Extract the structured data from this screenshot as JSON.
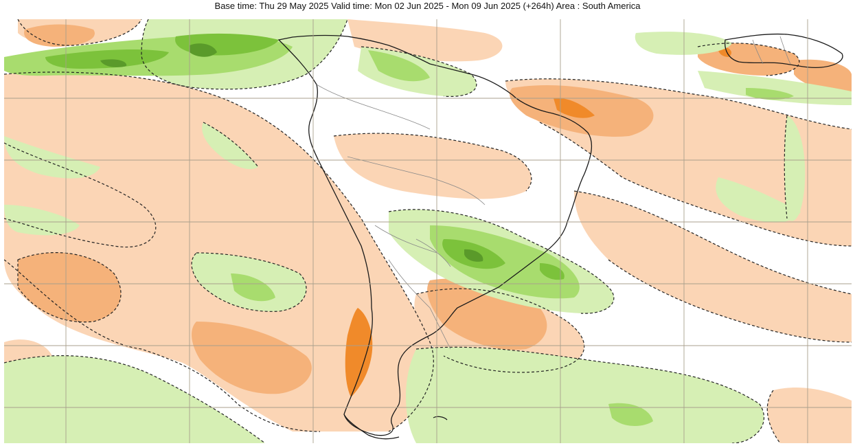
{
  "header": {
    "title": "Base time: Thu 29 May 2025 Valid time: Mon 02 Jun 2025 - Mon 09 Jun 2025 (+264h) Area : South America"
  },
  "map": {
    "area": "South America",
    "field_colors": {
      "strong_positive": "#f08a2a",
      "moderate_positive": "#f5b27a",
      "weak_positive": "#fbd5b5",
      "weak_negative": "#d6efb4",
      "moderate_negative": "#a8dc6e",
      "strong_negative": "#7cc23b",
      "very_strong_negative": "#5a9a2a",
      "graticule": "#a89f8c",
      "coastline": "#1a1a1a",
      "contour": "#222222"
    }
  }
}
